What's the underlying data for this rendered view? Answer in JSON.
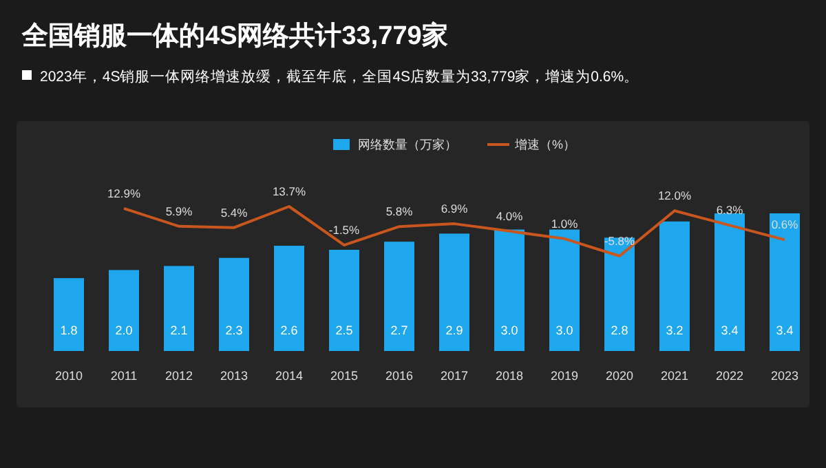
{
  "chart_data": {
    "type": "bar",
    "title": "全国销服一体的4S网络共计33,779家",
    "subtitle": "2023年，4S销服一体网络增速放缓，截至年底，全国4S店数量为33,779家，增速为0.6%。",
    "categories": [
      "2010",
      "2011",
      "2012",
      "2013",
      "2014",
      "2015",
      "2016",
      "2017",
      "2018",
      "2019",
      "2020",
      "2021",
      "2022",
      "2023"
    ],
    "legend": "top",
    "series": [
      {
        "name": "网络数量（万家）",
        "color": "#1ea7ec",
        "values": [
          1.8,
          2.0,
          2.1,
          2.3,
          2.6,
          2.5,
          2.7,
          2.9,
          3.0,
          3.0,
          2.8,
          3.2,
          3.4,
          3.4
        ],
        "value_labels": [
          "1.8",
          "2.0",
          "2.1",
          "2.3",
          "2.6",
          "2.5",
          "2.7",
          "2.9",
          "3.0",
          "3.0",
          "2.8",
          "3.2",
          "3.4",
          "3.4"
        ]
      },
      {
        "name": "增速（%）",
        "type": "line",
        "axis": "y2",
        "color": "#c8561e",
        "values": [
          null,
          12.9,
          5.9,
          5.4,
          13.7,
          -1.5,
          5.8,
          6.9,
          4.0,
          1.0,
          -5.8,
          12.0,
          6.3,
          0.6
        ],
        "value_labels": [
          null,
          "12.9%",
          "5.9%",
          "5.4%",
          "13.7%",
          "-1.5%",
          "5.8%",
          "6.9%",
          "4.0%",
          "1.0%",
          "-5.8%",
          "12.0%",
          "6.3%",
          "0.6%"
        ]
      }
    ]
  }
}
